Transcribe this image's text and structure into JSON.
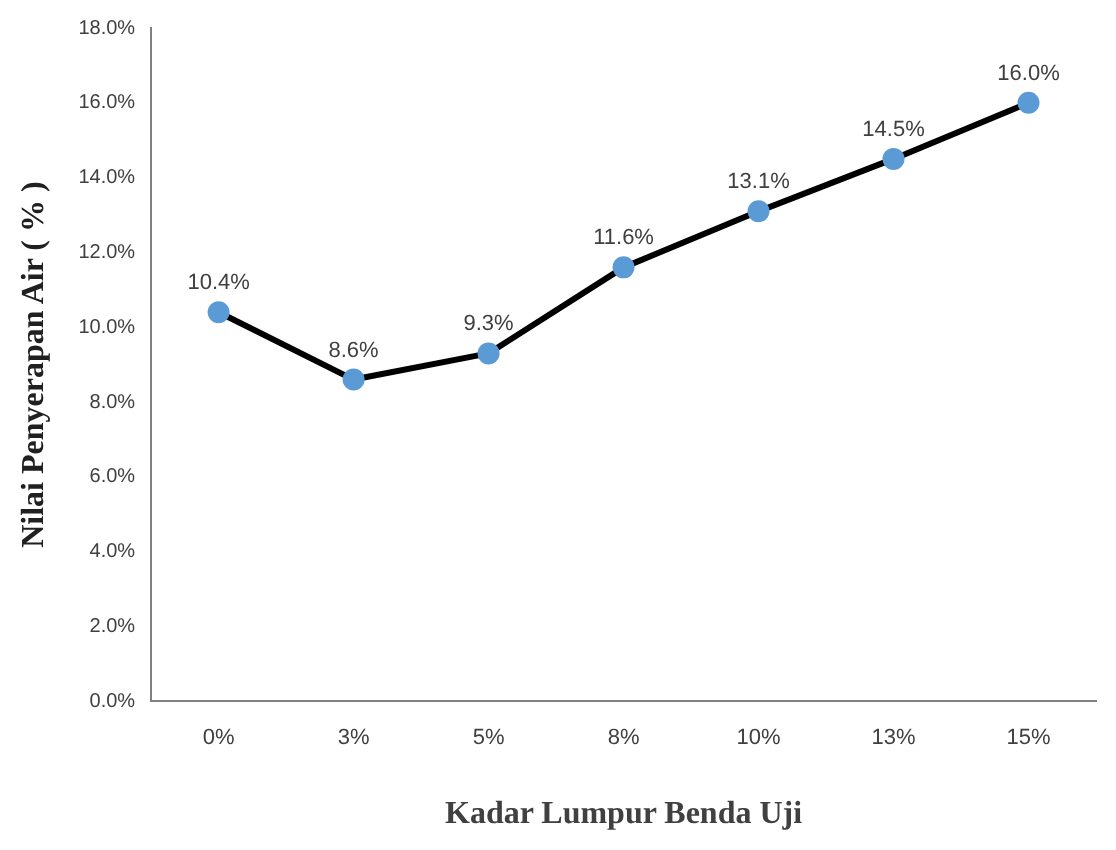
{
  "chart_data": {
    "type": "line",
    "xlabel": "Kadar Lumpur Benda Uji",
    "ylabel": "Nilai Penyerapan Air ( % )",
    "categories": [
      "0%",
      "3%",
      "5%",
      "8%",
      "10%",
      "13%",
      "15%"
    ],
    "series": [
      {
        "color": "#000000",
        "colors": [
          "#5b9bd5",
          "#5b9bd5",
          "#5b9bd5",
          "#5b9bd5",
          "#5b9bd5",
          "#5b9bd5",
          "#5b9bd5"
        ],
        "values": [
          10.4,
          8.6,
          9.3,
          11.6,
          13.1,
          14.5,
          16.0
        ],
        "value_labels": [
          "10.4%",
          "8.6%",
          "9.3%",
          "11.6%",
          "13.1%",
          "14.5%",
          "16.0%"
        ]
      }
    ],
    "ylim": [
      0,
      18
    ],
    "yticks": [
      {
        "value": 0,
        "label": "0.0%"
      },
      {
        "value": 2,
        "label": "2.0%"
      },
      {
        "value": 4,
        "label": "4.0%"
      },
      {
        "value": 6,
        "label": "6.0%"
      },
      {
        "value": 8,
        "label": "8.0%"
      },
      {
        "value": 10,
        "label": "10.0%"
      },
      {
        "value": 12,
        "label": "12.0%"
      },
      {
        "value": 14,
        "label": "14.0%"
      },
      {
        "value": 16,
        "label": "16.0%"
      },
      {
        "value": 18,
        "label": "18.0%"
      }
    ],
    "grid": false,
    "legend": false,
    "marker": "circle",
    "line_style": "solid"
  }
}
